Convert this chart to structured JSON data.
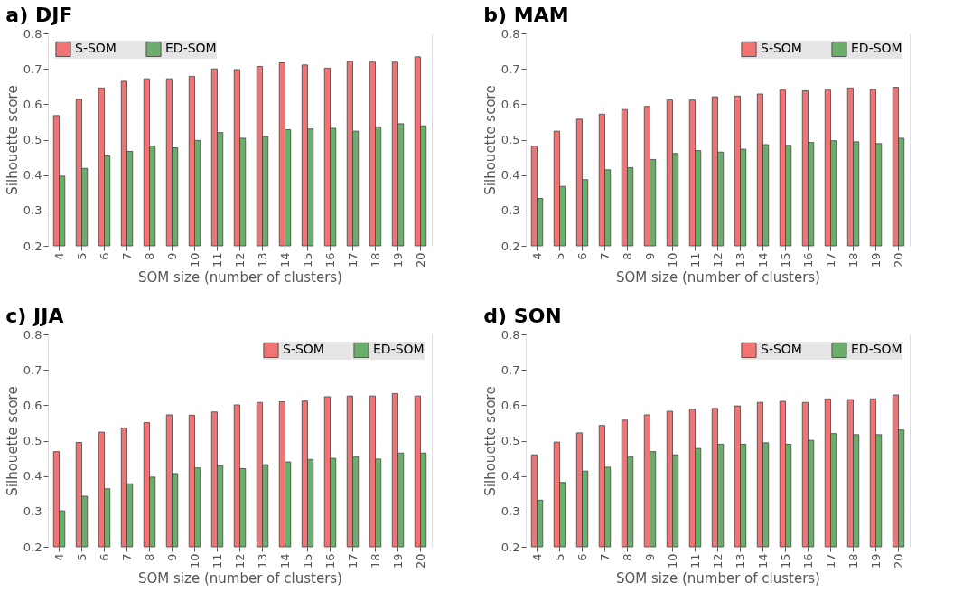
{
  "chart_data": [
    {
      "type": "bar",
      "title": "a) DJF",
      "xlabel": "SOM size (number of clusters)",
      "ylabel": "Silhouette score",
      "categories": [
        "4",
        "5",
        "6",
        "7",
        "8",
        "9",
        "10",
        "11",
        "12",
        "13",
        "14",
        "15",
        "16",
        "17",
        "18",
        "19",
        "20"
      ],
      "ylim": [
        0.2,
        0.8
      ],
      "yticks": [
        0.2,
        0.3,
        0.4,
        0.5,
        0.6,
        0.7,
        0.8
      ],
      "grid": true,
      "legend": "top left",
      "series": [
        {
          "name": "S-SOM",
          "color": "#f07474",
          "values": [
            0.568,
            0.614,
            0.646,
            0.665,
            0.672,
            0.672,
            0.679,
            0.7,
            0.698,
            0.707,
            0.717,
            0.711,
            0.702,
            0.721,
            0.719,
            0.719,
            0.734
          ]
        },
        {
          "name": "ED-SOM",
          "color": "#6bae6b",
          "values": [
            0.397,
            0.419,
            0.454,
            0.467,
            0.482,
            0.477,
            0.498,
            0.52,
            0.504,
            0.509,
            0.528,
            0.53,
            0.532,
            0.524,
            0.536,
            0.545,
            0.539
          ]
        }
      ]
    },
    {
      "type": "bar",
      "title": "b) MAM",
      "xlabel": "SOM size (number of clusters)",
      "ylabel": "Silhouette score",
      "categories": [
        "4",
        "5",
        "6",
        "7",
        "8",
        "9",
        "10",
        "11",
        "12",
        "13",
        "14",
        "15",
        "16",
        "17",
        "18",
        "19",
        "20"
      ],
      "ylim": [
        0.2,
        0.8
      ],
      "yticks": [
        0.2,
        0.3,
        0.4,
        0.5,
        0.6,
        0.7,
        0.8
      ],
      "grid": true,
      "legend": "top right",
      "series": [
        {
          "name": "S-SOM",
          "color": "#f07474",
          "values": [
            0.482,
            0.524,
            0.558,
            0.572,
            0.585,
            0.594,
            0.612,
            0.612,
            0.621,
            0.623,
            0.629,
            0.64,
            0.638,
            0.64,
            0.646,
            0.642,
            0.648
          ]
        },
        {
          "name": "ED-SOM",
          "color": "#6bae6b",
          "values": [
            0.334,
            0.368,
            0.387,
            0.415,
            0.421,
            0.444,
            0.461,
            0.469,
            0.465,
            0.473,
            0.486,
            0.484,
            0.492,
            0.497,
            0.494,
            0.489,
            0.504
          ]
        }
      ]
    },
    {
      "type": "bar",
      "title": "c) JJA",
      "xlabel": "SOM size (number of clusters)",
      "ylabel": "Silhouette score",
      "categories": [
        "4",
        "5",
        "6",
        "7",
        "8",
        "9",
        "10",
        "11",
        "12",
        "13",
        "14",
        "15",
        "16",
        "17",
        "18",
        "19",
        "20"
      ],
      "ylim": [
        0.2,
        0.8
      ],
      "yticks": [
        0.2,
        0.3,
        0.4,
        0.5,
        0.6,
        0.7,
        0.8
      ],
      "grid": true,
      "legend": "top right",
      "series": [
        {
          "name": "S-SOM",
          "color": "#f07474",
          "values": [
            0.469,
            0.495,
            0.524,
            0.536,
            0.551,
            0.573,
            0.572,
            0.581,
            0.601,
            0.608,
            0.61,
            0.612,
            0.624,
            0.626,
            0.626,
            0.633,
            0.626
          ]
        },
        {
          "name": "ED-SOM",
          "color": "#6bae6b",
          "values": [
            0.302,
            0.343,
            0.364,
            0.378,
            0.397,
            0.407,
            0.423,
            0.429,
            0.421,
            0.432,
            0.44,
            0.447,
            0.45,
            0.455,
            0.448,
            0.465,
            0.465
          ]
        }
      ]
    },
    {
      "type": "bar",
      "title": "d) SON",
      "xlabel": "SOM size (number of clusters)",
      "ylabel": "Silhouette score",
      "categories": [
        "4",
        "5",
        "6",
        "7",
        "8",
        "9",
        "10",
        "11",
        "12",
        "13",
        "14",
        "15",
        "16",
        "17",
        "18",
        "19",
        "20"
      ],
      "ylim": [
        0.2,
        0.8
      ],
      "yticks": [
        0.2,
        0.3,
        0.4,
        0.5,
        0.6,
        0.7,
        0.8
      ],
      "grid": true,
      "legend": "top right",
      "series": [
        {
          "name": "S-SOM",
          "color": "#f07474",
          "values": [
            0.46,
            0.496,
            0.522,
            0.543,
            0.558,
            0.573,
            0.583,
            0.589,
            0.591,
            0.598,
            0.608,
            0.611,
            0.608,
            0.618,
            0.616,
            0.618,
            0.629
          ]
        },
        {
          "name": "ED-SOM",
          "color": "#6bae6b",
          "values": [
            0.332,
            0.382,
            0.414,
            0.425,
            0.455,
            0.469,
            0.46,
            0.478,
            0.49,
            0.49,
            0.494,
            0.49,
            0.501,
            0.52,
            0.517,
            0.517,
            0.53
          ]
        }
      ]
    }
  ]
}
